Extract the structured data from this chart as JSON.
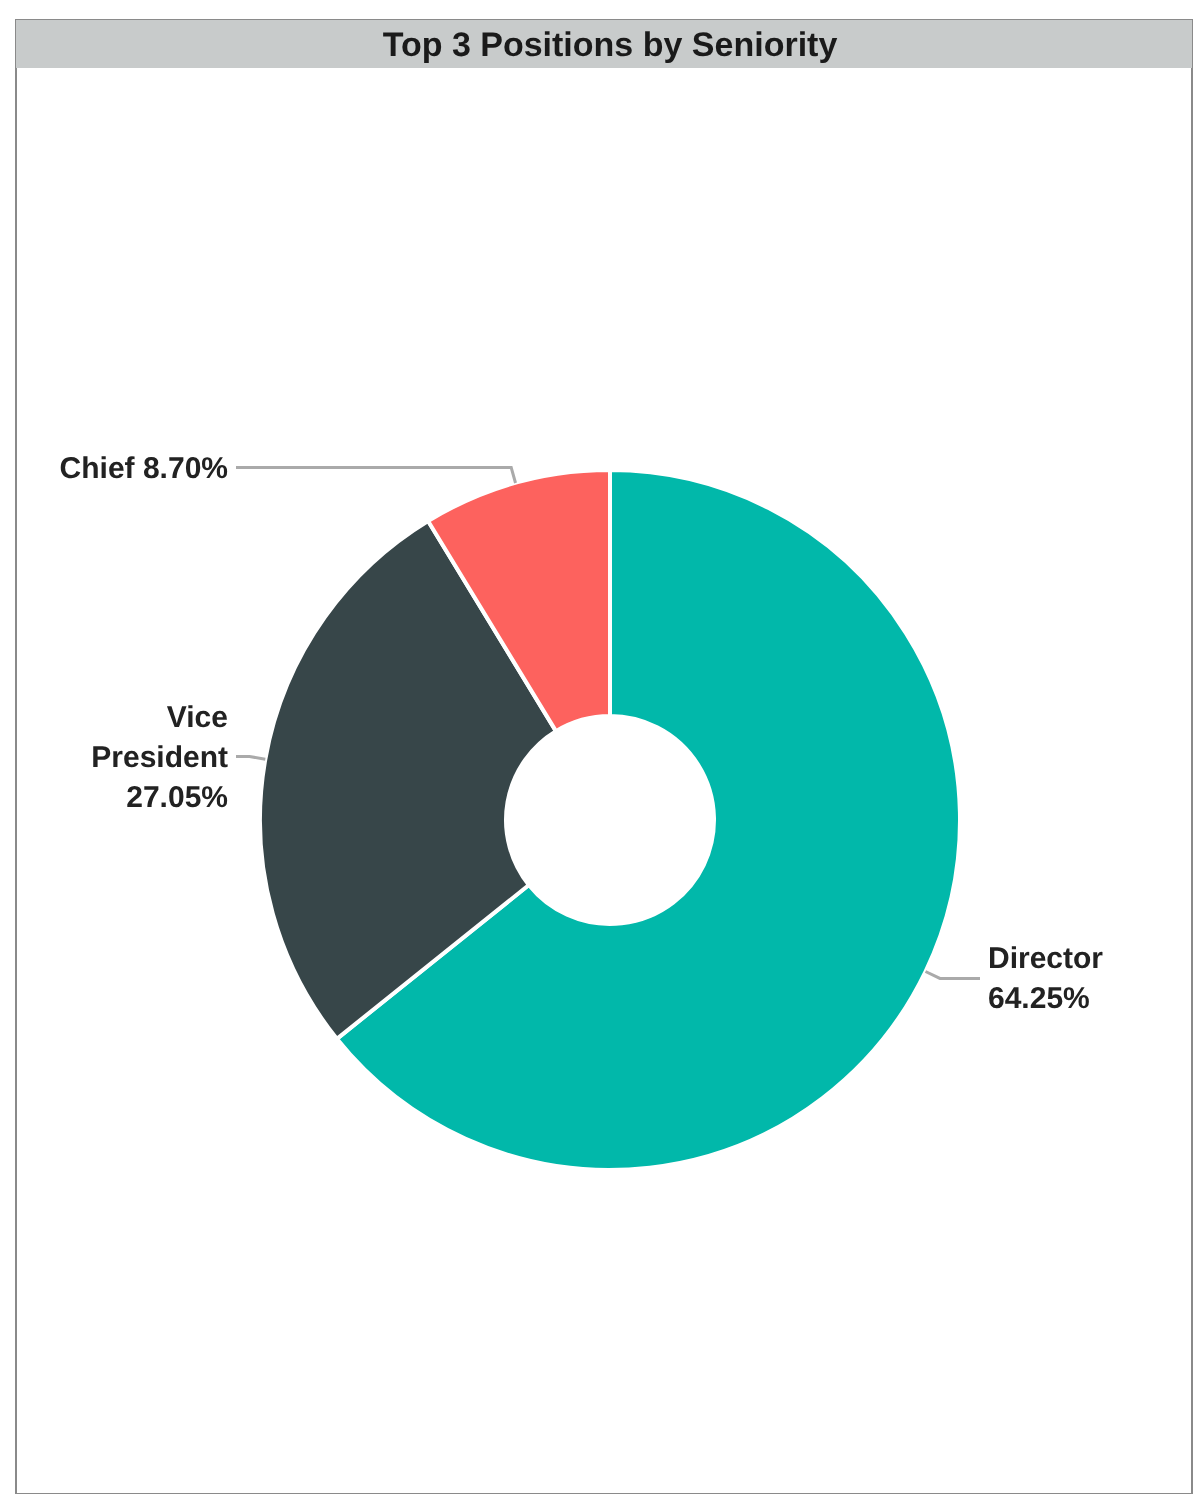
{
  "chart_data": {
    "type": "donut",
    "title": "Top 3 Positions by Seniority",
    "categories": [
      "Director",
      "Vice President",
      "Chief"
    ],
    "values": [
      64.25,
      27.05,
      8.7
    ],
    "colors": [
      "#01b8aa",
      "#374649",
      "#fd625e"
    ],
    "value_labels": [
      "64.25%",
      "27.05%",
      "8.70%"
    ]
  }
}
